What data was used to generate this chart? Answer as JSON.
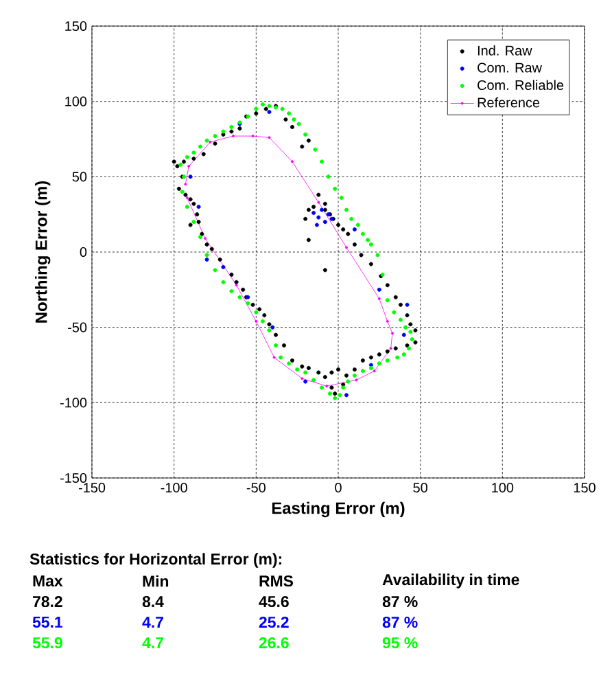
{
  "chart_data": {
    "type": "scatter",
    "xlabel": "Easting Error (m)",
    "ylabel": "Northing Error (m)",
    "xlim": [
      -150,
      150
    ],
    "ylim": [
      -150,
      150
    ],
    "xticks": [
      -150,
      -100,
      -50,
      0,
      50,
      100,
      150
    ],
    "yticks": [
      -150,
      -100,
      -50,
      0,
      50,
      100,
      150
    ],
    "grid": true,
    "legend": "top right",
    "marker": "circle",
    "series": [
      {
        "name": "Ind. Raw",
        "color": "#000000",
        "x": [
          -100,
          -98,
          -95,
          -97,
          -93,
          -90,
          -88,
          -86,
          -85,
          -90,
          -83,
          -80,
          -77,
          -72,
          -65,
          -62,
          -58,
          -56,
          -52,
          -48,
          -45,
          -42,
          -38,
          -33,
          -28,
          -22,
          -18,
          -12,
          -8,
          -4,
          -2,
          3,
          -4,
          0,
          5,
          10,
          15,
          20,
          25,
          30,
          35,
          42,
          47,
          47,
          44,
          42,
          38,
          35,
          30,
          26,
          20,
          14,
          10,
          6,
          3,
          -3,
          -8,
          -15,
          -18,
          -20,
          -18,
          -8,
          -12,
          -8,
          -5,
          0,
          -22,
          -18,
          -28,
          -32,
          -38,
          -44,
          -50,
          -56,
          -60,
          -65,
          -70,
          -75,
          -82,
          -88,
          -94
        ],
        "values": [
          60,
          57,
          50,
          42,
          38,
          35,
          32,
          25,
          20,
          18,
          12,
          5,
          2,
          -5,
          -15,
          -20,
          -25,
          -30,
          -35,
          -38,
          -42,
          -48,
          -55,
          -62,
          -72,
          -76,
          -77,
          -80,
          -83,
          -90,
          -94,
          -88,
          -80,
          -78,
          -82,
          -78,
          -72,
          -70,
          -68,
          -66,
          -64,
          -62,
          -60,
          -52,
          -48,
          -42,
          -35,
          -30,
          -22,
          -16,
          -8,
          -2,
          5,
          12,
          15,
          22,
          28,
          30,
          28,
          22,
          8,
          -12,
          38,
          32,
          25,
          18,
          70,
          74,
          83,
          88,
          97,
          95,
          92,
          90,
          82,
          80,
          78,
          72,
          65,
          62,
          60
        ]
      },
      {
        "name": "Com. Raw",
        "color": "#0000ff",
        "x": [
          -15,
          -12,
          -10,
          -8,
          -6,
          -13,
          -4,
          -90,
          -85,
          -70,
          -55,
          -40,
          -20,
          5,
          20,
          40,
          42,
          25,
          10,
          -60,
          -42,
          -80
        ],
        "values": [
          26,
          23,
          28,
          20,
          25,
          18,
          22,
          50,
          30,
          -10,
          -30,
          -50,
          -86,
          -95,
          -75,
          -55,
          -35,
          -25,
          15,
          85,
          93,
          -5
        ]
      },
      {
        "name": "Com. Reliable",
        "color": "#00ff00",
        "x": [
          -96,
          -92,
          -88,
          -84,
          -80,
          -75,
          -70,
          -65,
          -60,
          -55,
          -50,
          -46,
          -42,
          -38,
          -34,
          -30,
          -27,
          -24,
          -20,
          -14,
          -10,
          -6,
          -2,
          2,
          5,
          8,
          12,
          15,
          18,
          20,
          24,
          27,
          30,
          34,
          38,
          41,
          44,
          45,
          43,
          40,
          36,
          30,
          25,
          20,
          15,
          10,
          6,
          3,
          1,
          -2,
          -5,
          -10,
          -15,
          -20,
          -25,
          -30,
          -35,
          -38,
          -42,
          -46,
          -50,
          -55,
          -60,
          -65,
          -70,
          -75,
          -80,
          -84,
          -88,
          -92,
          -95,
          -94
        ],
        "values": [
          58,
          63,
          66,
          70,
          74,
          77,
          80,
          83,
          86,
          90,
          95,
          98,
          97,
          96,
          95,
          92,
          88,
          85,
          78,
          68,
          60,
          50,
          42,
          36,
          28,
          22,
          18,
          12,
          8,
          5,
          -2,
          -15,
          -32,
          -40,
          -45,
          -50,
          -53,
          -58,
          -64,
          -68,
          -70,
          -72,
          -74,
          -77,
          -79,
          -82,
          -86,
          -90,
          -95,
          -97,
          -94,
          -90,
          -85,
          -80,
          -78,
          -74,
          -70,
          -62,
          -52,
          -46,
          -40,
          -34,
          -30,
          -26,
          -20,
          -12,
          -2,
          10,
          20,
          30,
          40,
          50
        ]
      },
      {
        "name": "Reference",
        "color": "#ff00ff",
        "type": "line",
        "line_style": "solid",
        "x": [
          -93,
          -91,
          -78,
          -64,
          -52,
          -42,
          -28,
          -12,
          5,
          25,
          30,
          33,
          32,
          22,
          11,
          -7,
          -22,
          -39,
          -50,
          -62,
          -81,
          -92
        ],
        "values": [
          45,
          57,
          73,
          77,
          77,
          76,
          60,
          33,
          3,
          -31,
          -46,
          -54,
          -64,
          -79,
          -85,
          -89,
          -84,
          -70,
          -46,
          -22,
          9,
          36
        ]
      }
    ],
    "annotations": [
      "Statistics for Horizontal Error  (m):",
      "Max",
      "Min",
      "RMS",
      "Availability in time",
      "78.2",
      "8.4",
      "45.6",
      "87 %",
      "55.1",
      "4.7",
      "25.2",
      "87 %",
      "55.9",
      "4.7",
      "26.6",
      "95 %"
    ]
  }
}
